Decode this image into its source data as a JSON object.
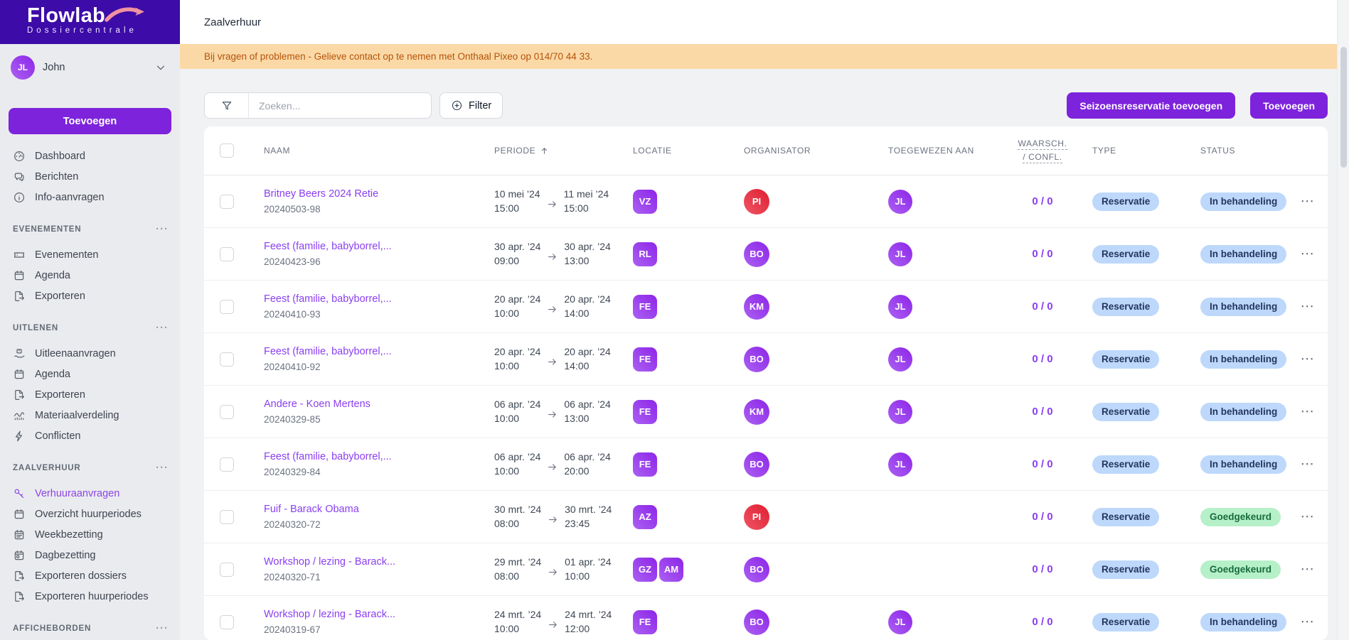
{
  "brand": {
    "name": "Flowlab",
    "subtitle": "Dossiercentrale"
  },
  "user": {
    "initials": "JL",
    "name": "John"
  },
  "sidebar": {
    "add_button": "Toevoegen",
    "top_items": [
      {
        "icon": "gauge",
        "label": "Dashboard"
      },
      {
        "icon": "chat",
        "label": "Berichten"
      },
      {
        "icon": "info",
        "label": "Info-aanvragen"
      }
    ],
    "sections": [
      {
        "label": "EVENEMENTEN",
        "items": [
          {
            "icon": "ticket",
            "label": "Evenementen"
          },
          {
            "icon": "calendar",
            "label": "Agenda"
          },
          {
            "icon": "export",
            "label": "Exporteren"
          }
        ]
      },
      {
        "label": "UITLENEN",
        "items": [
          {
            "icon": "lend",
            "label": "Uitleenaanvragen"
          },
          {
            "icon": "calendar",
            "label": "Agenda"
          },
          {
            "icon": "export",
            "label": "Exporteren"
          },
          {
            "icon": "chart",
            "label": "Materiaalverdeling"
          },
          {
            "icon": "bolt",
            "label": "Conflicten"
          }
        ]
      },
      {
        "label": "ZAALVERHUUR",
        "items": [
          {
            "icon": "key",
            "label": "Verhuuraanvragen",
            "active": true
          },
          {
            "icon": "calendar",
            "label": "Overzicht huurperiodes"
          },
          {
            "icon": "calendar-week",
            "label": "Weekbezetting"
          },
          {
            "icon": "calendar-day",
            "label": "Dagbezetting"
          },
          {
            "icon": "export",
            "label": "Exporteren dossiers"
          },
          {
            "icon": "export",
            "label": "Exporteren huurperiodes"
          }
        ]
      },
      {
        "label": "AFFICHEBORDEN",
        "items": []
      }
    ]
  },
  "header": {
    "title": "Zaalverhuur"
  },
  "banner": {
    "text": "Bij vragen of problemen - Gelieve contact op te nemen met Onthaal Pixeo op 014/70 44 33."
  },
  "toolbar": {
    "search_placeholder": "Zoeken...",
    "filter_label": "Filter",
    "season_button": "Seizoensreservatie toevoegen",
    "add_button": "Toevoegen"
  },
  "table": {
    "columns": {
      "naam": "NAAM",
      "periode": "PERIODE",
      "locatie": "LOCATIE",
      "organisator": "ORGANISATOR",
      "toegewezen": "TOEGEWEZEN AAN",
      "waarsch_line1": "WAARSCH.",
      "waarsch_line2": "/ CONFL.",
      "type": "TYPE",
      "status": "STATUS"
    },
    "rows": [
      {
        "name": "Britney Beers 2024 Retie",
        "id": "20240503-98",
        "start": {
          "date": "10 mei ’24",
          "time": "15:00"
        },
        "end": {
          "date": "11 mei ’24",
          "time": "15:00"
        },
        "locations": [
          "VZ"
        ],
        "organiser": {
          "initials": "PI",
          "color": "red"
        },
        "assigned": "JL",
        "warn": "0 / 0",
        "type": "Reservatie",
        "status": "In behandeling",
        "status_color": "blue"
      },
      {
        "name": "Feest (familie, babyborrel,...",
        "id": "20240423-96",
        "start": {
          "date": "30 apr. ’24",
          "time": "09:00"
        },
        "end": {
          "date": "30 apr. ’24",
          "time": "13:00"
        },
        "locations": [
          "RL"
        ],
        "organiser": {
          "initials": "BO",
          "color": "purple"
        },
        "assigned": "JL",
        "warn": "0 / 0",
        "type": "Reservatie",
        "status": "In behandeling",
        "status_color": "blue"
      },
      {
        "name": "Feest (familie, babyborrel,...",
        "id": "20240410-93",
        "start": {
          "date": "20 apr. ’24",
          "time": "10:00"
        },
        "end": {
          "date": "20 apr. ’24",
          "time": "14:00"
        },
        "locations": [
          "FE"
        ],
        "organiser": {
          "initials": "KM",
          "color": "purple"
        },
        "assigned": "JL",
        "warn": "0 / 0",
        "type": "Reservatie",
        "status": "In behandeling",
        "status_color": "blue"
      },
      {
        "name": "Feest (familie, babyborrel,...",
        "id": "20240410-92",
        "start": {
          "date": "20 apr. ’24",
          "time": "10:00"
        },
        "end": {
          "date": "20 apr. ’24",
          "time": "14:00"
        },
        "locations": [
          "FE"
        ],
        "organiser": {
          "initials": "BO",
          "color": "purple"
        },
        "assigned": "JL",
        "warn": "0 / 0",
        "type": "Reservatie",
        "status": "In behandeling",
        "status_color": "blue"
      },
      {
        "name": "Andere - Koen Mertens",
        "id": "20240329-85",
        "start": {
          "date": "06 apr. ’24",
          "time": "10:00"
        },
        "end": {
          "date": "06 apr. ’24",
          "time": "13:00"
        },
        "locations": [
          "FE"
        ],
        "organiser": {
          "initials": "KM",
          "color": "purple"
        },
        "assigned": "JL",
        "warn": "0 / 0",
        "type": "Reservatie",
        "status": "In behandeling",
        "status_color": "blue"
      },
      {
        "name": "Feest (familie, babyborrel,...",
        "id": "20240329-84",
        "start": {
          "date": "06 apr. ’24",
          "time": "10:00"
        },
        "end": {
          "date": "06 apr. ’24",
          "time": "20:00"
        },
        "locations": [
          "FE"
        ],
        "organiser": {
          "initials": "BO",
          "color": "purple"
        },
        "assigned": "JL",
        "warn": "0 / 0",
        "type": "Reservatie",
        "status": "In behandeling",
        "status_color": "blue"
      },
      {
        "name": "Fuif - Barack Obama",
        "id": "20240320-72",
        "start": {
          "date": "30 mrt. ’24",
          "time": "08:00"
        },
        "end": {
          "date": "30 mrt. ’24",
          "time": "23:45"
        },
        "locations": [
          "AZ"
        ],
        "organiser": {
          "initials": "PI",
          "color": "red"
        },
        "assigned": null,
        "warn": "0 / 0",
        "type": "Reservatie",
        "status": "Goedgekeurd",
        "status_color": "green"
      },
      {
        "name": "Workshop / lezing - Barack...",
        "id": "20240320-71",
        "start": {
          "date": "29 mrt. ’24",
          "time": "08:00"
        },
        "end": {
          "date": "01 apr. ’24",
          "time": "10:00"
        },
        "locations": [
          "GZ",
          "AM"
        ],
        "organiser": {
          "initials": "BO",
          "color": "purple"
        },
        "assigned": null,
        "warn": "0 / 0",
        "type": "Reservatie",
        "status": "Goedgekeurd",
        "status_color": "green"
      },
      {
        "name": "Workshop / lezing - Barack...",
        "id": "20240319-67",
        "start": {
          "date": "24 mrt. ’24",
          "time": "10:00"
        },
        "end": {
          "date": "24 mrt. ’24",
          "time": "12:00"
        },
        "locations": [
          "FE"
        ],
        "organiser": {
          "initials": "BO",
          "color": "purple"
        },
        "assigned": "JL",
        "warn": "0 / 0",
        "type": "Reservatie",
        "status": "In behandeling",
        "status_color": "blue"
      }
    ]
  },
  "colors": {
    "brand_bg": "#3d0ba8",
    "accent": "#7d23dc",
    "active": "#8b45e6",
    "link": "#8a3ff0",
    "banner_bg": "#fbd9a7",
    "banner_text": "#b45309",
    "pill_blue_bg": "#bdd8fb",
    "pill_blue_text": "#24365e",
    "pill_green_bg": "#b6f0c9",
    "pill_green_text": "#176b3e",
    "badge_purple_1": "#8d25e8",
    "badge_purple_2": "#ab61f2",
    "badge_red_1": "#de1f31",
    "badge_red_2": "#f05565",
    "swoosh": "#f093a0"
  }
}
